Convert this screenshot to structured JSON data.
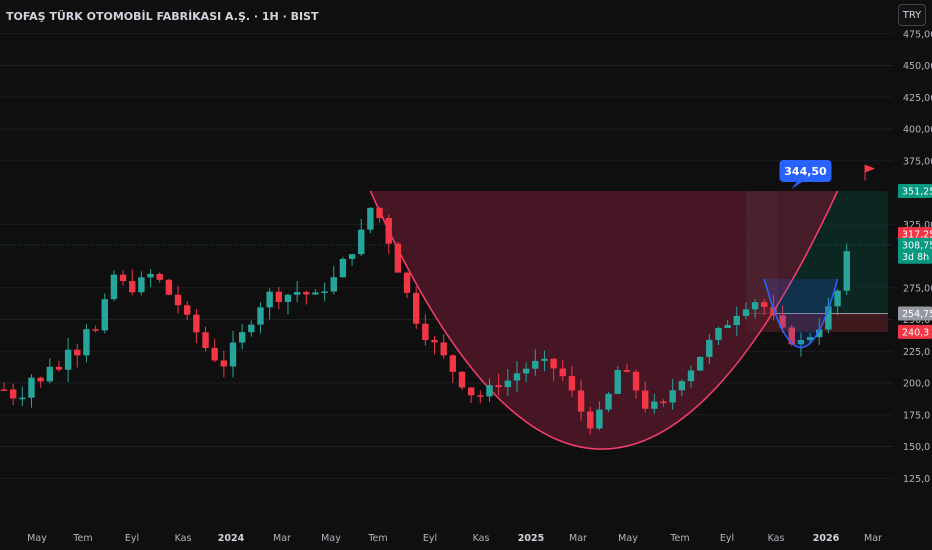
{
  "header": {
    "title": "TOFAŞ TÜRK OTOMOBİL FABRİKASI A.Ş. · 1H · BIST",
    "currency": "TRY"
  },
  "colors": {
    "background": "#0f0f0f",
    "up": "#26a69a",
    "down": "#f23645",
    "cup_fill": "#5a1a2c",
    "cup_line": "#f03d6b",
    "handle_line": "#2962ff",
    "target_zone": "#0b3b33",
    "stop_zone": "#4a1c22"
  },
  "chart_data": {
    "type": "candlestick",
    "y_axis": {
      "min": 115,
      "max": 478,
      "ticks": [
        "125,0",
        "150,0",
        "175,0",
        "200,0",
        "225,0",
        "250,0",
        "275,00",
        "325,00",
        "375,00",
        "400,00",
        "425,00",
        "450,00",
        "475,00"
      ]
    },
    "x_axis": {
      "labels": [
        {
          "text": "May",
          "bold": false
        },
        {
          "text": "Tem",
          "bold": false
        },
        {
          "text": "Eyl",
          "bold": false
        },
        {
          "text": "Kas",
          "bold": false
        },
        {
          "text": "2024",
          "bold": true
        },
        {
          "text": "Mar",
          "bold": false
        },
        {
          "text": "May",
          "bold": false
        },
        {
          "text": "Tem",
          "bold": false
        },
        {
          "text": "Eyl",
          "bold": false
        },
        {
          "text": "Kas",
          "bold": false
        },
        {
          "text": "2025",
          "bold": true
        },
        {
          "text": "Mar",
          "bold": false
        },
        {
          "text": "May",
          "bold": false
        },
        {
          "text": "Tem",
          "bold": false
        },
        {
          "text": "Eyl",
          "bold": false
        },
        {
          "text": "Kas",
          "bold": false
        },
        {
          "text": "2026",
          "bold": true
        },
        {
          "text": "Mar",
          "bold": false
        }
      ]
    },
    "price_path": [
      [
        0,
        195
      ],
      [
        1,
        190
      ],
      [
        2,
        192
      ],
      [
        3,
        205
      ],
      [
        4,
        200
      ],
      [
        5,
        215
      ],
      [
        6,
        210
      ],
      [
        7,
        230
      ],
      [
        8,
        225
      ],
      [
        9,
        245
      ],
      [
        10,
        240
      ],
      [
        11,
        262
      ],
      [
        12,
        285
      ],
      [
        13,
        278
      ],
      [
        14,
        275
      ],
      [
        15,
        280
      ],
      [
        16,
        285
      ],
      [
        17,
        280
      ],
      [
        18,
        270
      ],
      [
        19,
        262
      ],
      [
        20,
        250
      ],
      [
        21,
        240
      ],
      [
        22,
        228
      ],
      [
        23,
        220
      ],
      [
        24,
        215
      ],
      [
        25,
        228
      ],
      [
        26,
        238
      ],
      [
        27,
        250
      ],
      [
        28,
        262
      ],
      [
        29,
        270
      ],
      [
        30,
        268
      ],
      [
        31,
        270
      ],
      [
        32,
        272
      ],
      [
        33,
        270
      ],
      [
        34,
        268
      ],
      [
        35,
        275
      ],
      [
        36,
        282
      ],
      [
        37,
        295
      ],
      [
        38,
        305
      ],
      [
        39,
        318
      ],
      [
        40,
        338
      ],
      [
        41,
        330
      ],
      [
        42,
        312
      ],
      [
        43,
        290
      ],
      [
        44,
        270
      ],
      [
        45,
        250
      ],
      [
        46,
        238
      ],
      [
        47,
        230
      ],
      [
        48,
        220
      ],
      [
        49,
        210
      ],
      [
        50,
        200
      ],
      [
        51,
        192
      ],
      [
        52,
        190
      ],
      [
        53,
        195
      ],
      [
        54,
        200
      ],
      [
        55,
        202
      ],
      [
        56,
        208
      ],
      [
        57,
        212
      ],
      [
        58,
        215
      ],
      [
        59,
        215
      ],
      [
        60,
        212
      ],
      [
        61,
        205
      ],
      [
        62,
        192
      ],
      [
        63,
        178
      ],
      [
        64,
        168
      ],
      [
        65,
        175
      ],
      [
        66,
        190
      ],
      [
        67,
        210
      ],
      [
        68,
        205
      ],
      [
        69,
        195
      ],
      [
        70,
        182
      ],
      [
        71,
        182
      ],
      [
        72,
        182
      ],
      [
        73,
        195
      ],
      [
        74,
        205
      ],
      [
        75,
        212
      ],
      [
        76,
        222
      ],
      [
        77,
        232
      ],
      [
        78,
        240
      ],
      [
        79,
        248
      ],
      [
        80,
        256
      ],
      [
        81,
        262
      ],
      [
        82,
        265
      ],
      [
        83,
        260
      ],
      [
        84,
        250
      ],
      [
        85,
        240
      ],
      [
        86,
        234
      ],
      [
        87,
        232
      ],
      [
        88,
        238
      ],
      [
        89,
        245
      ],
      [
        90,
        258
      ],
      [
        91,
        272
      ],
      [
        92,
        300
      ]
    ],
    "cup": {
      "start": [
        40,
        351.25
      ],
      "bottom": [
        65,
        148
      ],
      "end": [
        91,
        351.25
      ]
    },
    "handle": {
      "start": [
        83,
        282
      ],
      "bottom": [
        87,
        228
      ],
      "end": [
        91,
        282
      ]
    },
    "callout": "344,50",
    "price_labels": [
      {
        "text": "351,25",
        "value": 351.25,
        "color": "#089981"
      },
      {
        "text": "317,25",
        "value": 317.25,
        "color": "#f23645"
      },
      {
        "text": "308,75",
        "value": 308.75,
        "color": "#089981"
      },
      {
        "text": "3d 8h",
        "value": 299.5,
        "color": "#089981"
      },
      {
        "text": "254,75",
        "value": 254.75,
        "color": "#9598a1"
      },
      {
        "text": "240,3",
        "value": 240.3,
        "color": "#f23645"
      }
    ]
  }
}
